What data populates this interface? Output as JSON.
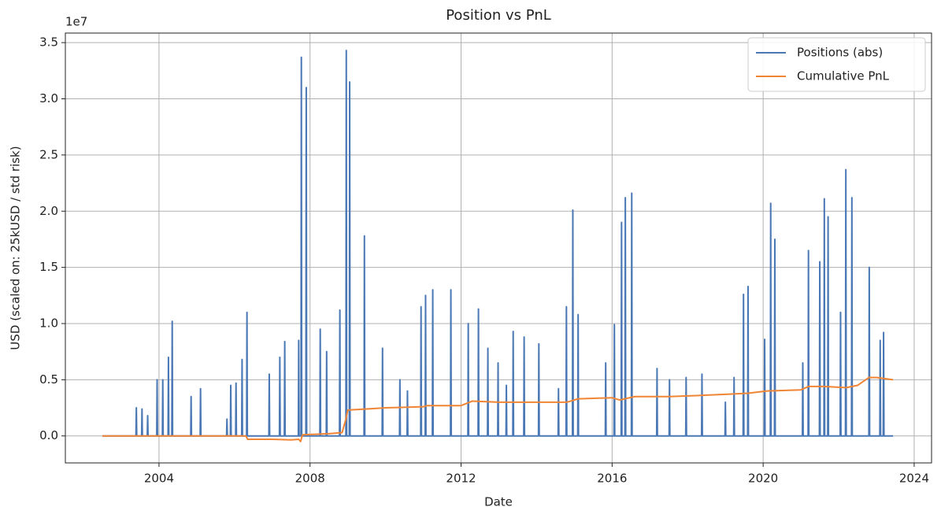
{
  "chart_data": {
    "type": "line",
    "title": "Position vs PnL",
    "xlabel": "Date",
    "ylabel": "USD (scaled on: 25kUSD / std risk)",
    "offset_text": "1e7",
    "xlim": [
      2001.52,
      2024.46
    ],
    "xticks": [
      2004,
      2008,
      2012,
      2016,
      2020,
      2024
    ],
    "ylim": [
      -0.24,
      3.585
    ],
    "yticks": [
      {
        "value": 0,
        "label": "0.0"
      },
      0.5,
      {
        "value": 1,
        "label": "1.0"
      },
      1.5,
      {
        "value": 2,
        "label": "2.0"
      },
      2.5,
      {
        "value": 3,
        "label": "3.0"
      },
      3.5
    ],
    "grid": true,
    "legend": "upper right",
    "series": [
      {
        "name": "Positions (abs)",
        "color": "#4a78b5",
        "x": [
          2002.5,
          2003.39,
          2003.4,
          2003.41,
          2003.54,
          2003.55,
          2003.56,
          2003.69,
          2003.7,
          2003.71,
          2003.94,
          2003.95,
          2003.96,
          2004.09,
          2004.1,
          2004.11,
          2004.24,
          2004.25,
          2004.26,
          2004.34,
          2004.35,
          2004.36,
          2004.84,
          2004.85,
          2004.86,
          2005.09,
          2005.1,
          2005.11,
          2005.79,
          2005.8,
          2005.81,
          2005.89,
          2005.9,
          2005.91,
          2006.03,
          2006.04,
          2006.05,
          2006.19,
          2006.2,
          2006.21,
          2006.32,
          2006.33,
          2006.34,
          2006.91,
          2006.92,
          2006.93,
          2007.19,
          2007.2,
          2007.21,
          2007.32,
          2007.33,
          2007.34,
          2007.69,
          2007.7,
          2007.71,
          2007.76,
          2007.77,
          2007.78,
          2007.89,
          2007.9,
          2007.91,
          2008.26,
          2008.27,
          2008.28,
          2008.43,
          2008.44,
          2008.45,
          2008.78,
          2008.79,
          2008.8,
          2008.95,
          2008.96,
          2008.97,
          2009.04,
          2009.05,
          2009.06,
          2009.43,
          2009.44,
          2009.45,
          2009.91,
          2009.92,
          2009.93,
          2010.37,
          2010.38,
          2010.39,
          2010.57,
          2010.58,
          2010.59,
          2010.93,
          2010.94,
          2010.95,
          2011.05,
          2011.06,
          2011.07,
          2011.24,
          2011.25,
          2011.26,
          2011.72,
          2011.73,
          2011.74,
          2012.18,
          2012.19,
          2012.2,
          2012.45,
          2012.46,
          2012.47,
          2012.7,
          2012.71,
          2012.72,
          2012.97,
          2012.98,
          2012.99,
          2013.19,
          2013.2,
          2013.21,
          2013.37,
          2013.38,
          2013.39,
          2013.66,
          2013.67,
          2013.68,
          2014.05,
          2014.06,
          2014.07,
          2014.57,
          2014.58,
          2014.59,
          2014.78,
          2014.79,
          2014.8,
          2014.95,
          2014.96,
          2014.97,
          2015.09,
          2015.1,
          2015.11,
          2015.82,
          2015.83,
          2015.84,
          2016.05,
          2016.06,
          2016.07,
          2016.24,
          2016.25,
          2016.26,
          2016.34,
          2016.35,
          2016.36,
          2016.51,
          2016.52,
          2016.53,
          2017.18,
          2017.19,
          2017.2,
          2017.51,
          2017.52,
          2017.53,
          2017.95,
          2017.96,
          2017.97,
          2018.37,
          2018.38,
          2018.39,
          2018.99,
          2019.0,
          2019.01,
          2019.22,
          2019.23,
          2019.24,
          2019.47,
          2019.48,
          2019.49,
          2019.59,
          2019.6,
          2019.61,
          2020.03,
          2020.04,
          2020.05,
          2020.19,
          2020.2,
          2020.21,
          2020.3,
          2020.31,
          2020.32,
          2021.04,
          2021.05,
          2021.06,
          2021.19,
          2021.2,
          2021.21,
          2021.49,
          2021.5,
          2021.51,
          2021.61,
          2021.62,
          2021.63,
          2021.71,
          2021.72,
          2021.73,
          2022.04,
          2022.05,
          2022.06,
          2022.18,
          2022.19,
          2022.2,
          2022.34,
          2022.35,
          2022.36,
          2022.8,
          2022.81,
          2022.82,
          2023.09,
          2023.1,
          2023.11,
          2023.18,
          2023.19,
          2023.2,
          2023.44
        ],
        "values": [
          0,
          0,
          0.25,
          0,
          0,
          0.24,
          0,
          0,
          0.18,
          0,
          0,
          0.5,
          0,
          0,
          0.5,
          0,
          0,
          0.7,
          0,
          0,
          1.02,
          0,
          0,
          0.35,
          0,
          0,
          0.42,
          0,
          0,
          0.15,
          0,
          0,
          0.45,
          0,
          0,
          0.47,
          0,
          0,
          0.68,
          0,
          0,
          1.1,
          0,
          0,
          0.55,
          0,
          0,
          0.7,
          0,
          0,
          0.84,
          0,
          0,
          0.85,
          0,
          0,
          3.37,
          0,
          0,
          3.1,
          0,
          0,
          0.95,
          0,
          0,
          0.75,
          0,
          0,
          1.12,
          0,
          0,
          3.43,
          0,
          0,
          3.15,
          0,
          0,
          1.78,
          0,
          0,
          0.78,
          0,
          0,
          0.5,
          0,
          0,
          0.4,
          0,
          0,
          1.15,
          0,
          0,
          1.25,
          0,
          0,
          1.3,
          0,
          0,
          1.3,
          0,
          0,
          1.0,
          0,
          0,
          1.13,
          0,
          0,
          0.78,
          0,
          0,
          0.65,
          0,
          0,
          0.45,
          0,
          0,
          0.93,
          0,
          0,
          0.88,
          0,
          0,
          0.82,
          0,
          0,
          0.42,
          0,
          0,
          1.15,
          0,
          0,
          2.01,
          0,
          0,
          1.08,
          0,
          0,
          0.65,
          0,
          0,
          0.99,
          0,
          0,
          1.9,
          0,
          0,
          2.12,
          0,
          0,
          2.16,
          0,
          0,
          0.6,
          0,
          0,
          0.5,
          0,
          0,
          0.52,
          0,
          0,
          0.55,
          0,
          0,
          0.3,
          0,
          0,
          0.52,
          0,
          0,
          1.26,
          0,
          0,
          1.33,
          0,
          0,
          0.86,
          0,
          0,
          2.07,
          0,
          0,
          1.75,
          0,
          0,
          0.65,
          0,
          0,
          1.65,
          0,
          0,
          1.55,
          0,
          0,
          2.11,
          0,
          0,
          1.95,
          0,
          0,
          1.1,
          0,
          0,
          2.37,
          0,
          0,
          2.12,
          0,
          0,
          1.5,
          0,
          0,
          0.85,
          0,
          0,
          0.92,
          0,
          0
        ]
      },
      {
        "name": "Cumulative PnL",
        "color": "#ef8535",
        "x": [
          2002.5,
          2006.3,
          2006.35,
          2007.0,
          2007.5,
          2007.7,
          2007.75,
          2007.8,
          2008.5,
          2008.85,
          2008.95,
          2009.0,
          2009.5,
          2010.0,
          2011.0,
          2011.1,
          2012.0,
          2012.3,
          2013.0,
          2014.0,
          2014.8,
          2015.1,
          2016.0,
          2016.2,
          2016.6,
          2017.5,
          2018.3,
          2019.0,
          2019.6,
          2020.1,
          2021.0,
          2021.2,
          2021.6,
          2022.2,
          2022.5,
          2022.8,
          2023.0,
          2023.44
        ],
        "values": [
          0,
          0,
          -0.03,
          -0.03,
          -0.035,
          -0.03,
          -0.05,
          0.01,
          0.02,
          0.03,
          0.15,
          0.23,
          0.24,
          0.25,
          0.26,
          0.27,
          0.27,
          0.31,
          0.3,
          0.3,
          0.3,
          0.33,
          0.34,
          0.32,
          0.35,
          0.35,
          0.36,
          0.37,
          0.38,
          0.4,
          0.41,
          0.44,
          0.44,
          0.43,
          0.45,
          0.52,
          0.52,
          0.5
        ]
      }
    ]
  }
}
